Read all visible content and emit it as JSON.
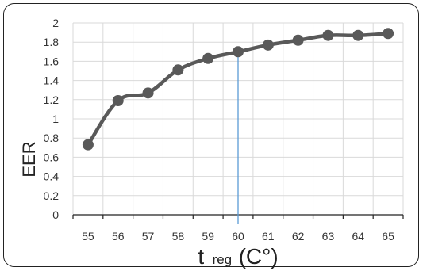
{
  "chart_data": {
    "type": "line",
    "x": [
      55,
      56,
      57,
      58,
      59,
      60,
      61,
      62,
      63,
      64,
      65
    ],
    "series": [
      {
        "values": [
          0.73,
          1.19,
          1.27,
          1.51,
          1.63,
          1.7,
          1.77,
          1.82,
          1.87,
          1.87,
          1.89
        ]
      }
    ],
    "ylabel": "EER",
    "xlabel_main": "t",
    "xlabel_sub": "reg",
    "xlabel_unit": "(C°)",
    "xlim": [
      54.5,
      65.5
    ],
    "ylim": [
      0,
      2
    ],
    "y_ticks": [
      "0",
      "0.2",
      "0.4",
      "0.6",
      "0.8",
      "1",
      "1.2",
      "1.4",
      "1.6",
      "1.8",
      "2"
    ],
    "x_ticks": [
      "55",
      "56",
      "57",
      "58",
      "59",
      "60",
      "61",
      "62",
      "63",
      "64",
      "65"
    ],
    "marker_x": 60,
    "grid": true,
    "colors": {
      "line": "#595959",
      "grid": "#d9d9d9",
      "axis": "#222222",
      "marker": "#5b9bd5"
    }
  }
}
